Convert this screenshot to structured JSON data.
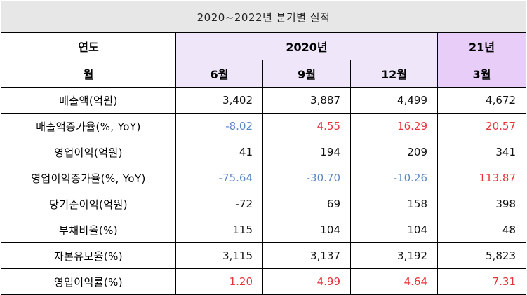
{
  "title": "2020~2022년 분기별 실적",
  "header": {
    "year_label": "연도",
    "month_label": "월",
    "year_2020": "2020년",
    "year_21": "21년",
    "months": [
      "6월",
      "9월",
      "12월",
      "3월"
    ]
  },
  "rows": [
    {
      "label": "매출액(억원)",
      "values": [
        "3,402",
        "3,887",
        "4,499",
        "4,672"
      ],
      "tones": [
        "plain",
        "plain",
        "plain",
        "plain"
      ]
    },
    {
      "label": "매출액증가율(%, YoY)",
      "values": [
        "-8.02",
        "4.55",
        "16.29",
        "20.57"
      ],
      "tones": [
        "neg",
        "pos",
        "pos",
        "pos"
      ]
    },
    {
      "label": "영업이익(억원)",
      "values": [
        "41",
        "194",
        "209",
        "341"
      ],
      "tones": [
        "plain",
        "plain",
        "plain",
        "plain"
      ]
    },
    {
      "label": "영업이익증가율(%, YoY)",
      "values": [
        "-75.64",
        "-30.70",
        "-10.26",
        "113.87"
      ],
      "tones": [
        "neg",
        "neg",
        "neg",
        "pos"
      ]
    },
    {
      "label": "당기순이익(억원)",
      "values": [
        "-72",
        "69",
        "158",
        "398"
      ],
      "tones": [
        "plain",
        "plain",
        "plain",
        "plain"
      ]
    },
    {
      "label": "부채비율(%)",
      "values": [
        "115",
        "104",
        "104",
        "48"
      ],
      "tones": [
        "plain",
        "plain",
        "plain",
        "plain"
      ]
    },
    {
      "label": "자본유보율(%)",
      "values": [
        "3,115",
        "3,137",
        "3,192",
        "5,823"
      ],
      "tones": [
        "plain",
        "plain",
        "plain",
        "plain"
      ]
    },
    {
      "label": "영업이익률(%)",
      "values": [
        "1.20",
        "4.99",
        "4.64",
        "7.31"
      ],
      "tones": [
        "pos",
        "pos",
        "pos",
        "pos"
      ]
    }
  ],
  "colors": {
    "negative": "#5b87c1",
    "positive": "#e8333b",
    "title_bg": "#e7e7e7",
    "year_bg": "#f0e6fa",
    "year_alt_bg": "#e7cdf7"
  }
}
